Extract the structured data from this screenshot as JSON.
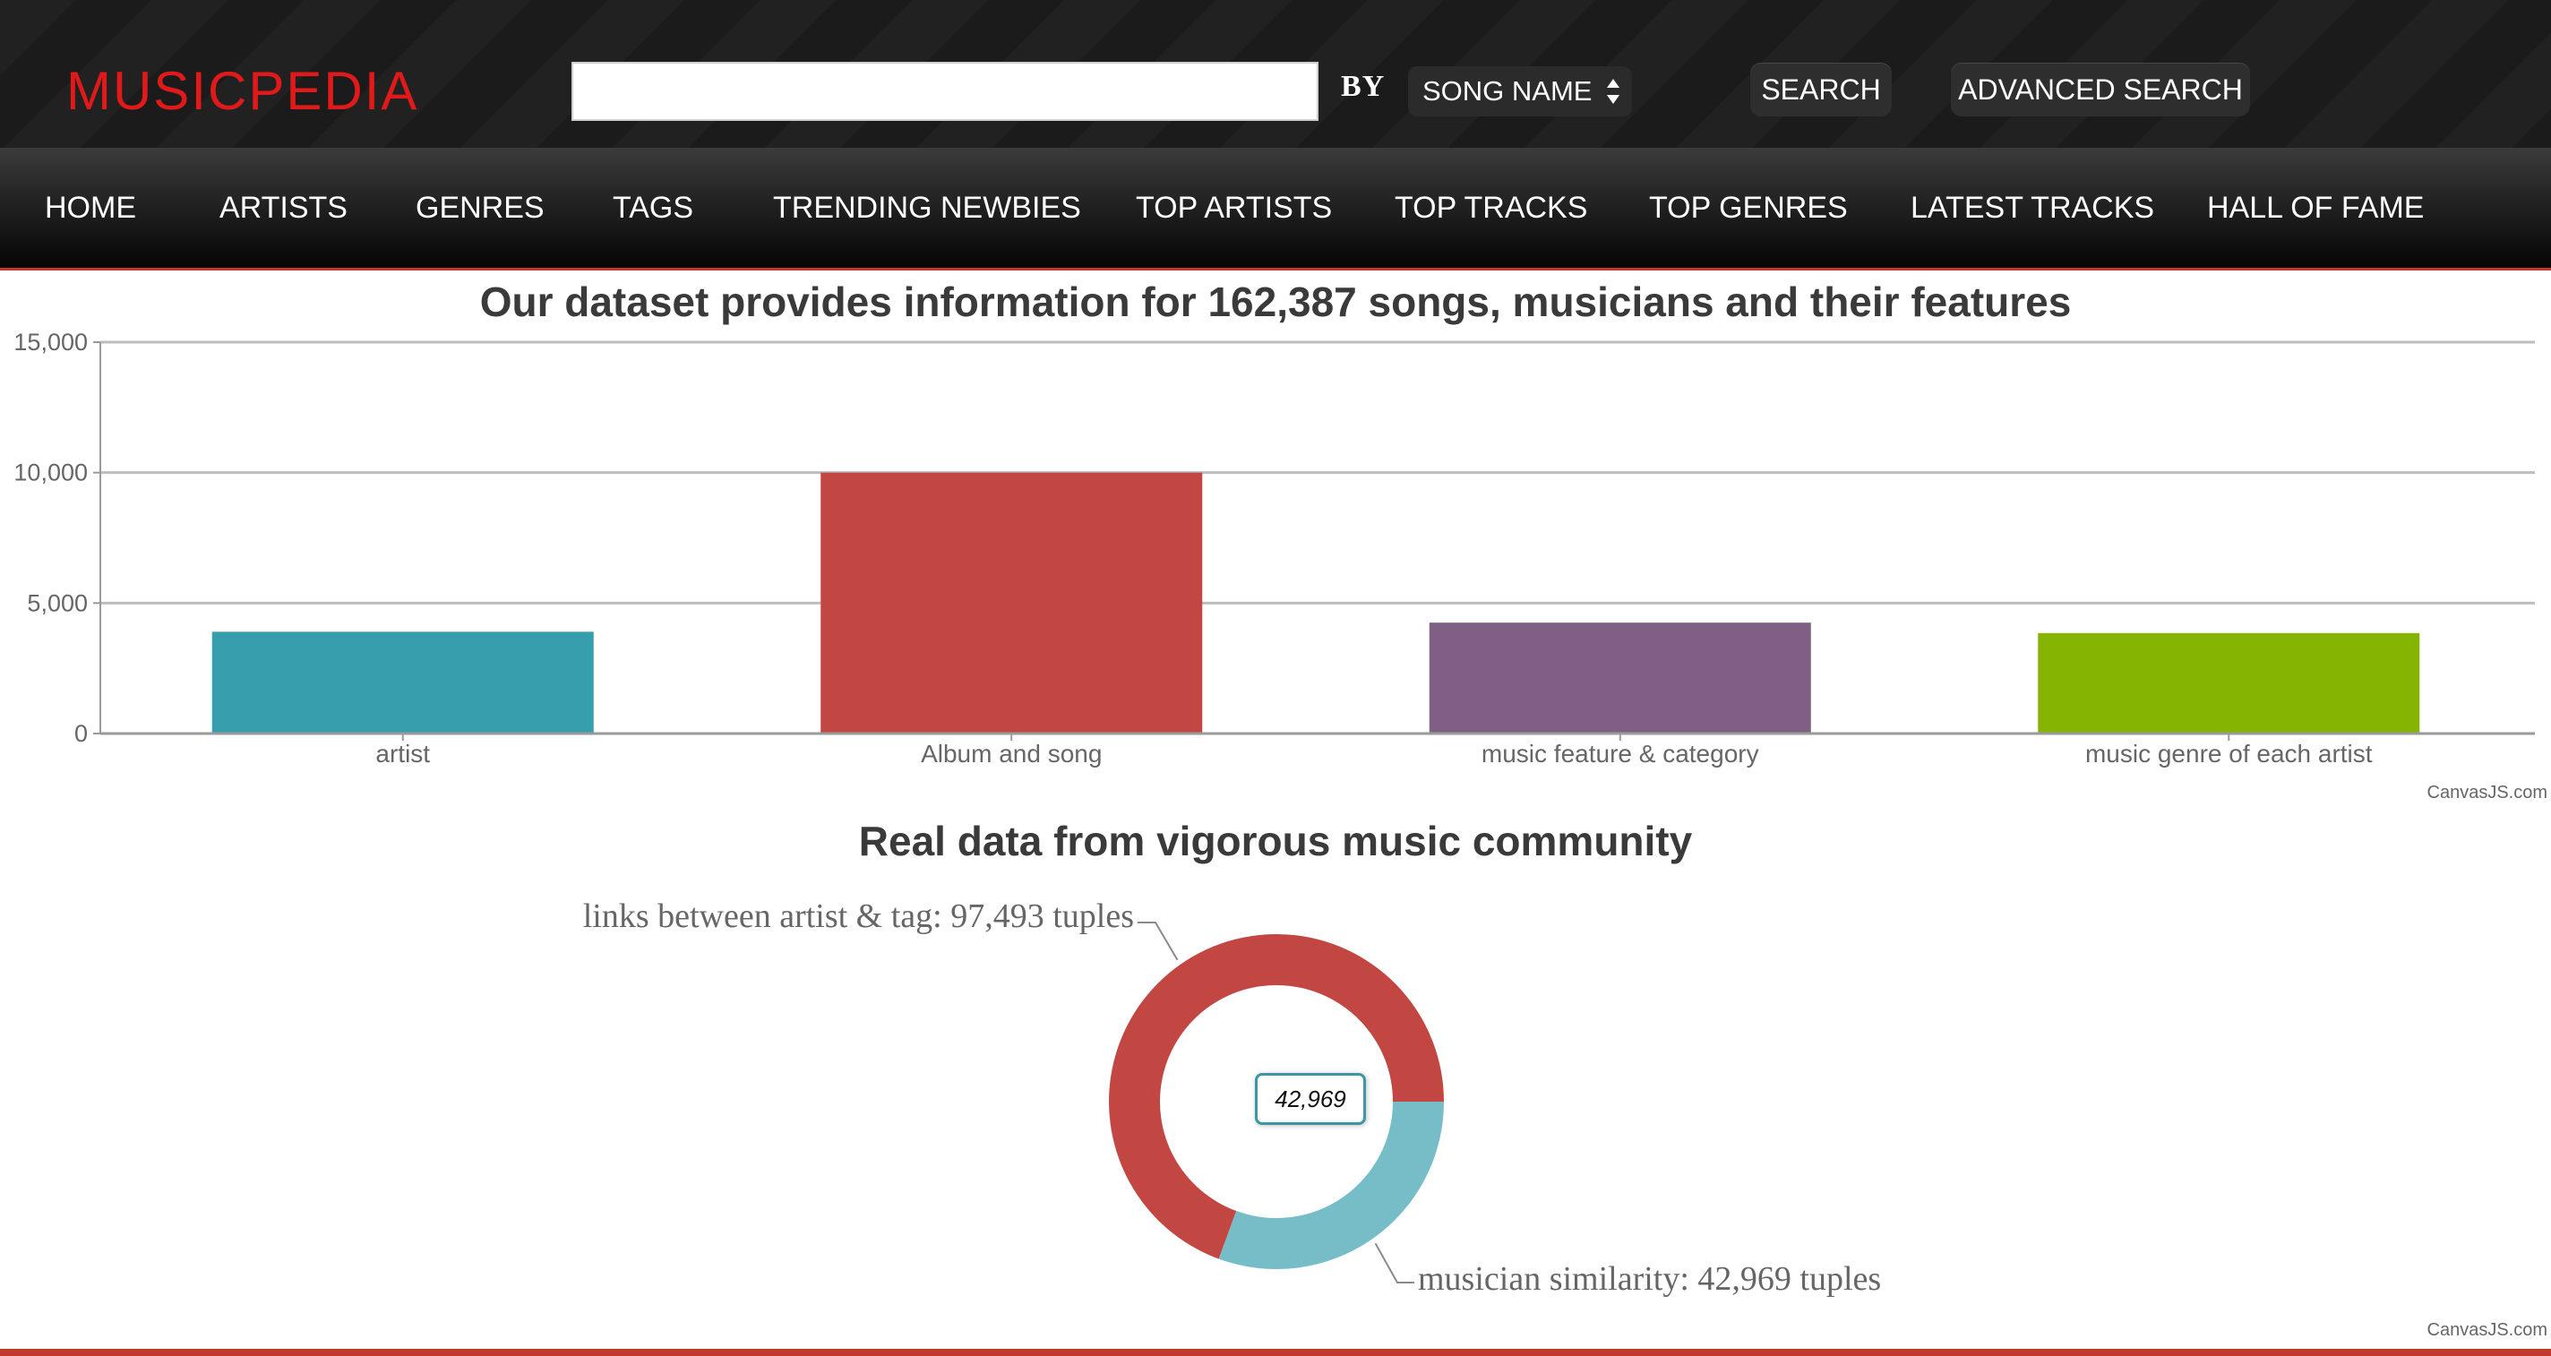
{
  "header": {
    "logo": "MUSICPEDIA",
    "search": {
      "value": "",
      "placeholder": ""
    },
    "by_label": "BY",
    "select_value": "SONG NAME",
    "search_button": "SEARCH",
    "advanced_search_button": "ADVANCED SEARCH"
  },
  "nav": {
    "items": [
      {
        "label": "HOME"
      },
      {
        "label": "ARTISTS"
      },
      {
        "label": "GENRES"
      },
      {
        "label": "TAGS"
      },
      {
        "label": "TRENDING NEWBIES"
      },
      {
        "label": "TOP ARTISTS"
      },
      {
        "label": "TOP TRACKS"
      },
      {
        "label": "TOP GENRES"
      },
      {
        "label": "LATEST TRACKS"
      },
      {
        "label": "HALL OF FAME"
      }
    ]
  },
  "credit": "CanvasJS.com",
  "colors": {
    "logo": "#e01a1a",
    "accent": "#c0392b",
    "bar_1": "#369ead",
    "bar_2": "#c24642",
    "bar_3": "#7f6084",
    "bar_4": "#86b402",
    "pie_1": "#c24642",
    "pie_2": "#76bdc8"
  },
  "chart_data": [
    {
      "type": "bar",
      "title": "Our dataset provides information for 162,387 songs, musicians and their features",
      "categories": [
        "artist",
        "Album and song",
        "music feature & category",
        "music genre of each artist"
      ],
      "values": [
        3900,
        10000,
        4250,
        3850
      ],
      "ylim": [
        0,
        15000
      ],
      "yticks": [
        0,
        5000,
        10000,
        15000
      ],
      "ytick_labels": [
        "0",
        "5,000",
        "10,000",
        "15,000"
      ],
      "grid": true
    },
    {
      "type": "pie",
      "title": "Real data from vigorous music community",
      "slices": [
        {
          "label": "links between artist & tag: 97,493 tuples",
          "value": 97493
        },
        {
          "label": "musician similarity: 42,969 tuples",
          "value": 42969
        }
      ],
      "tooltip": "42,969"
    }
  ]
}
